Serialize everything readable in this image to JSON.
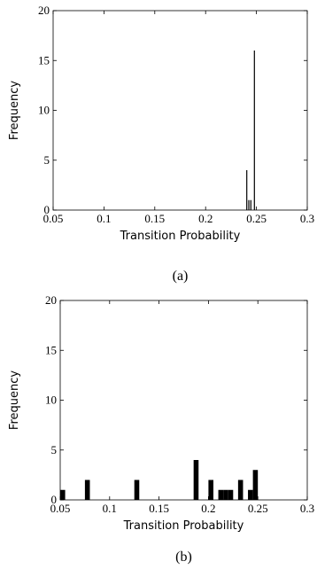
{
  "chart_data": [
    {
      "type": "bar",
      "panel_label": "(a)",
      "xlabel": "Transition Probability",
      "ylabel": "Frequency",
      "xlim": [
        0.05,
        0.3
      ],
      "ylim": [
        0,
        20
      ],
      "xticks": [
        "0.05",
        "0.1",
        "0.15",
        "0.2",
        "0.25",
        "0.3"
      ],
      "yticks": [
        "0",
        "5",
        "10",
        "15",
        "20"
      ],
      "bin_width": 0.001,
      "series": [
        {
          "x": [
            0.2405,
            0.2425,
            0.2445,
            0.248
          ],
          "values": [
            4,
            1,
            1,
            16
          ]
        }
      ],
      "grid": false
    },
    {
      "type": "bar",
      "panel_label": "(b)",
      "xlabel": "Transition Probability",
      "ylabel": "Frequency",
      "xlim": [
        0.05,
        0.3
      ],
      "ylim": [
        0,
        20
      ],
      "xticks": [
        "0.05",
        "0.1",
        "0.15",
        "0.2",
        "0.25",
        "0.3"
      ],
      "yticks": [
        "0",
        "5",
        "10",
        "15",
        "20"
      ],
      "bin_width": 0.005,
      "series": [
        {
          "x": [
            0.0525,
            0.0775,
            0.1275,
            0.1875,
            0.2025,
            0.2125,
            0.2175,
            0.2225,
            0.2325,
            0.2425,
            0.2475
          ],
          "values": [
            1,
            2,
            2,
            4,
            2,
            1,
            1,
            1,
            2,
            1,
            3
          ]
        }
      ],
      "grid": false
    }
  ]
}
